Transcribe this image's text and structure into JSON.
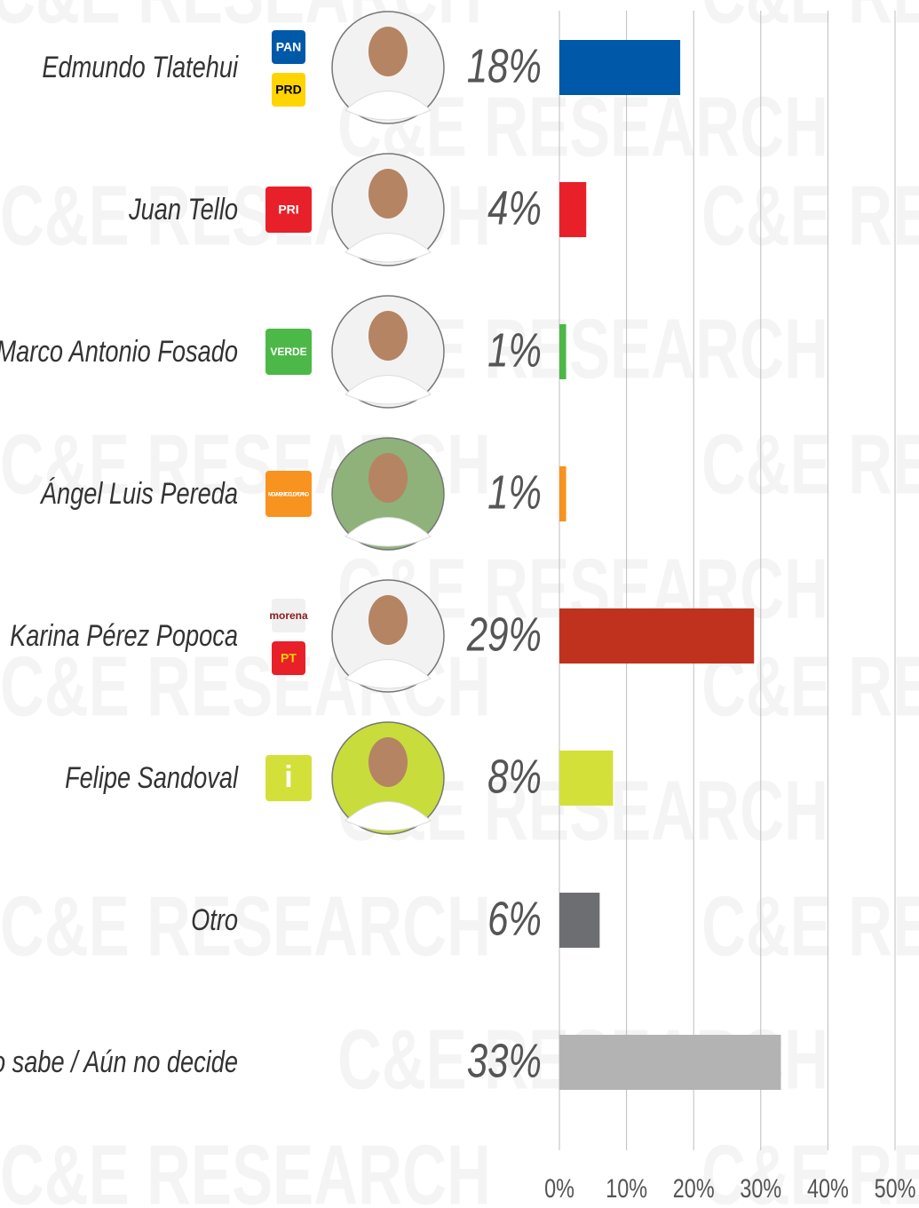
{
  "chart_data": {
    "type": "barh",
    "watermark": "C&E RESEARCH",
    "categories": [
      "Edmundo Tlatehui",
      "Juan Tello",
      "Marco Antonio Fosado",
      "Ángel Luis Pereda",
      "Karina Pérez Popoca",
      "Felipe Sandoval",
      "Otro",
      "No sabe / Aún no decide"
    ],
    "values": [
      18,
      4,
      1,
      1,
      29,
      8,
      6,
      33
    ],
    "value_labels": [
      "18%",
      "4%",
      "1%",
      "1%",
      "29%",
      "8%",
      "6%",
      "33%"
    ],
    "colors": [
      "#0059a8",
      "#e8202a",
      "#4cb848",
      "#f7931e",
      "#c0321e",
      "#d4e03a",
      "#6d6e71",
      "#b3b3b4"
    ],
    "party_logos": [
      [
        {
          "label": "PAN",
          "color": "#0059a8",
          "text_color": "#ffffff"
        },
        {
          "label": "PRD",
          "color": "#ffd400",
          "text_color": "#000000"
        }
      ],
      [
        {
          "label": "PRI",
          "color": "#e8202a",
          "text_color": "#ffffff"
        }
      ],
      [
        {
          "label": "VERDE",
          "color": "#4cb848",
          "text_color": "#ffffff"
        }
      ],
      [
        {
          "label": "MOVIMIENTO CIUDADANO",
          "color": "#f7931e",
          "text_color": "#ffffff"
        }
      ],
      [
        {
          "label": "morena",
          "color": "#f0f0f0",
          "text_color": "#8b1a1a"
        },
        {
          "label": "PT",
          "color": "#e8202a",
          "text_color": "#ffd400"
        }
      ],
      [
        {
          "label": "i",
          "color": "#d4e03a",
          "text_color": "#ffffff"
        }
      ],
      [],
      []
    ],
    "photo_backgrounds": [
      "#f2f2f2",
      "#f2f2f2",
      "#f2f2f2",
      "#8fb27a",
      "#f2f2f2",
      "#c8dc3c",
      null,
      null
    ],
    "xlim": [
      0,
      50
    ],
    "xticks": [
      {
        "value": 0,
        "label": "0%"
      },
      {
        "value": 10,
        "label": "10%"
      },
      {
        "value": 20,
        "label": "20%"
      },
      {
        "value": 30,
        "label": "30%"
      },
      {
        "value": 40,
        "label": "40%"
      },
      {
        "value": 50,
        "label": "50%"
      }
    ],
    "grid": true
  }
}
